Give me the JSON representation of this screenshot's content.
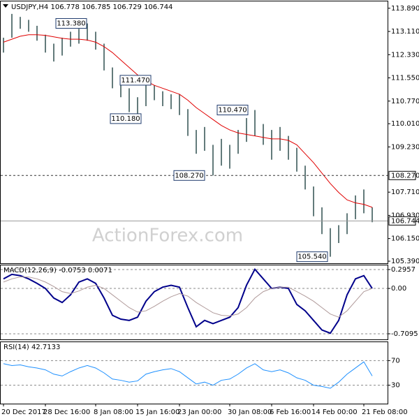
{
  "chart_data": [
    {
      "type": "ohlc",
      "title": "USDJPY,H4 106.778 106.785 106.729 106.744",
      "watermark": "ActionForex.com",
      "color": "#2f4f4f",
      "ylim": [
        105.32,
        114.12
      ],
      "yticks": [
        {
          "value": 113.89,
          "label": "113.890"
        },
        {
          "value": 113.11,
          "label": "113.110"
        },
        {
          "value": 112.33,
          "label": "112.330"
        },
        {
          "value": 111.55,
          "label": "111.550"
        },
        {
          "value": 110.77,
          "label": "110.770"
        },
        {
          "value": 110.01,
          "label": "110.010"
        },
        {
          "value": 109.23,
          "label": "109.230"
        },
        {
          "value": 107.71,
          "label": "107.710"
        },
        {
          "value": 106.93,
          "label": "106.930"
        },
        {
          "value": 106.15,
          "label": "106.150"
        },
        {
          "value": 105.39,
          "label": "105.390"
        }
      ],
      "high": [
        112.9,
        113.7,
        113.6,
        113.5,
        113.3,
        113.0,
        112.7,
        112.9,
        113.1,
        113.2,
        113.38,
        113.1,
        112.7,
        111.9,
        111.47,
        111.2,
        110.9,
        111.4,
        111.3,
        111.1,
        111.0,
        111.0,
        110.5,
        109.8,
        109.9,
        109.3,
        109.5,
        109.3,
        109.8,
        110.2,
        110.47,
        110.0,
        109.8,
        109.9,
        109.6,
        109.2,
        108.6,
        107.9,
        107.2,
        106.5,
        106.6,
        107.0,
        107.6,
        107.8,
        107.2
      ],
      "low": [
        112.4,
        112.9,
        113.2,
        113.1,
        112.8,
        112.4,
        112.1,
        112.3,
        112.6,
        112.7,
        112.8,
        112.5,
        111.8,
        111.2,
        110.9,
        110.4,
        110.18,
        110.6,
        110.8,
        110.6,
        110.5,
        110.3,
        109.6,
        109.0,
        109.1,
        108.27,
        108.6,
        108.5,
        109.0,
        109.4,
        109.6,
        109.3,
        108.8,
        109.1,
        108.8,
        108.4,
        107.8,
        106.9,
        106.3,
        105.54,
        106.0,
        106.3,
        106.8,
        107.0,
        106.7
      ],
      "lines": [
        {
          "color": "#e00000",
          "values": [
            112.75,
            112.85,
            112.95,
            113.0,
            113.0,
            112.98,
            112.93,
            112.88,
            112.85,
            112.85,
            112.82,
            112.75,
            112.6,
            112.4,
            112.15,
            111.9,
            111.65,
            111.45,
            111.3,
            111.2,
            111.1,
            111.0,
            110.8,
            110.55,
            110.35,
            110.15,
            109.95,
            109.8,
            109.7,
            109.65,
            109.6,
            109.55,
            109.5,
            109.5,
            109.45,
            109.3,
            109.0,
            108.7,
            108.35,
            108.0,
            107.7,
            107.45,
            107.35,
            107.3,
            107.2
          ]
        }
      ],
      "annotations": [
        {
          "value": 113.38,
          "label": "113.380"
        },
        {
          "value": 111.47,
          "label": "111.470"
        },
        {
          "value": 110.18,
          "label": "110.180"
        },
        {
          "value": 110.47,
          "label": "110.470"
        },
        {
          "value": 108.27,
          "label": "108.270"
        },
        {
          "value": 105.54,
          "label": "105.540"
        }
      ],
      "level": {
        "value": 108.27,
        "label": "108.270"
      },
      "price": {
        "value": 106.744,
        "label": "106.744"
      }
    },
    {
      "type": "line",
      "title": "MACD(12,26,9) -0.0753 0.0071",
      "ylim": [
        -0.808,
        0.361
      ],
      "yticks": [
        0.2957,
        {
          "value": 0,
          "label": "0.00"
        },
        -0.7095
      ],
      "series": [
        {
          "color": "#00008b",
          "values": [
            0.15,
            0.22,
            0.2,
            0.15,
            0.08,
            0.0,
            -0.15,
            -0.22,
            -0.1,
            0.1,
            0.15,
            0.08,
            -0.15,
            -0.42,
            -0.48,
            -0.5,
            -0.45,
            -0.2,
            -0.05,
            0.02,
            0.05,
            0.02,
            -0.3,
            -0.6,
            -0.5,
            -0.55,
            -0.5,
            -0.45,
            -0.3,
            0.05,
            0.3,
            0.15,
            0.0,
            0.02,
            0.0,
            -0.25,
            -0.35,
            -0.5,
            -0.65,
            -0.7,
            -0.5,
            -0.1,
            0.15,
            0.2,
            0.0
          ]
        },
        {
          "color": "#b09a9a",
          "values": [
            0.1,
            0.15,
            0.18,
            0.18,
            0.15,
            0.1,
            0.03,
            -0.05,
            -0.08,
            -0.04,
            0.02,
            0.05,
            0.0,
            -0.1,
            -0.2,
            -0.3,
            -0.37,
            -0.35,
            -0.28,
            -0.2,
            -0.13,
            -0.08,
            -0.12,
            -0.22,
            -0.3,
            -0.38,
            -0.42,
            -0.43,
            -0.4,
            -0.3,
            -0.15,
            -0.05,
            0.0,
            0.02,
            0.02,
            -0.05,
            -0.12,
            -0.2,
            -0.3,
            -0.4,
            -0.45,
            -0.35,
            -0.2,
            -0.05,
            0.0
          ]
        }
      ]
    },
    {
      "type": "line",
      "title": "RSI(14) 42.7133",
      "ylim": [
        0,
        100
      ],
      "yticks": [
        70,
        30
      ],
      "x": [
        "20 Dec 2017",
        null,
        null,
        null,
        null,
        "28 Dec 16:00",
        null,
        null,
        null,
        null,
        null,
        "8 Jan 08:00",
        null,
        null,
        null,
        null,
        "15 Jan 16:00",
        null,
        null,
        null,
        null,
        "23 Jan 00:00",
        null,
        null,
        null,
        null,
        null,
        "30 Jan 08:00",
        null,
        null,
        null,
        null,
        "6 Feb 16:00",
        null,
        null,
        null,
        null,
        "14 Feb 00:00",
        null,
        null,
        null,
        null,
        null,
        "21 Feb 08:00",
        null
      ],
      "series": [
        {
          "color": "#1e90ff",
          "values": [
            65,
            62,
            63,
            60,
            58,
            55,
            48,
            45,
            52,
            58,
            62,
            58,
            50,
            40,
            38,
            35,
            37,
            48,
            52,
            55,
            57,
            52,
            42,
            32,
            35,
            30,
            38,
            40,
            48,
            58,
            65,
            55,
            52,
            55,
            50,
            42,
            38,
            30,
            28,
            25,
            35,
            48,
            58,
            68,
            45
          ]
        }
      ]
    }
  ]
}
